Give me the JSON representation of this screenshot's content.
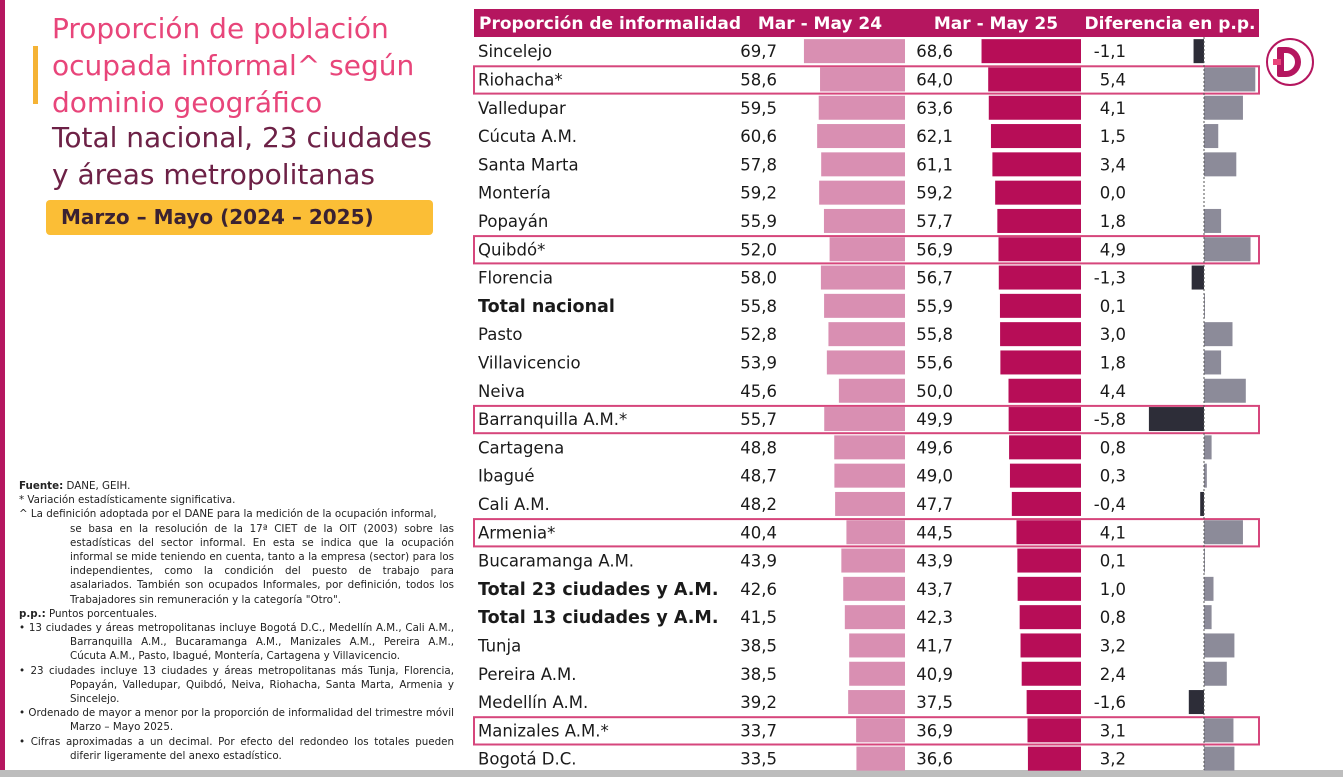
{
  "title": {
    "main": "Proporción de población ocupada informal^ según dominio geográfico",
    "sub": "Total nacional, 23 ciudades y áreas metropolitanas",
    "period": "Marzo – Mayo (2024 – 2025)"
  },
  "colors": {
    "accent": "#b5165f",
    "title_pink": "#e8457a",
    "title_dark": "#6d2146",
    "period_badge": "#fbbe36",
    "bar_prev": "#d98fb2",
    "bar_curr": "#b70d57",
    "diff_positive": "#8c8b99",
    "diff_negative": "#2d2d38",
    "highlight_border": "#d6467c"
  },
  "notes": {
    "source_label": "Fuente:",
    "source_value": " DANE, GEIH.",
    "significance": "* Variación estadísticamente significativa.",
    "definition_first": "^ La definición adoptada por el DANE para la medición de la ocupación informal,",
    "definition_rest": "se basa en la resolución de la 17ª CIET de la OIT (2003) sobre las estadísticas del sector informal. En esta se indica que la ocupación informal se mide teniendo en cuenta, tanto a la empresa (sector) para los independientes, como la condición del puesto de trabajo para asalariados. También son ocupados Informales, por definición, todos los Trabajadores sin remuneración y la categoría \"Otro\".",
    "pp_label": "p.p.:",
    "pp_value": " Puntos porcentuales.",
    "bullet_13": "• 13 ciudades y áreas metropolitanas incluye Bogotá D.C., Medellín A.M., Cali A.M., Barranquilla A.M., Bucaramanga A.M., Manizales A.M., Pereira A.M., Cúcuta A.M., Pasto, Ibagué, Montería, Cartagena y Villavicencio.",
    "bullet_23": "• 23 ciudades incluye 13 ciudades y áreas metropolitanas más Tunja, Florencia, Popayán, Valledupar, Quibdó, Neiva, Riohacha, Santa Marta, Armenia y Sincelejo.",
    "bullet_order": "• Ordenado de mayor a menor por la proporción de informalidad del trimestre móvil Marzo – Mayo 2025.",
    "bullet_round": "• Cifras aproximadas a un decimal. Por efecto del redondeo los totales pueden diferir ligeramente del anexo estadístico."
  },
  "chart_data": {
    "type": "bar",
    "headers": [
      "Proporción de informalidad",
      "Mar - May 24",
      "Mar - May 25",
      "Diferencia en p.p."
    ],
    "categories": [
      "Sincelejo",
      "Riohacha*",
      "Valledupar",
      "Cúcuta A.M.",
      "Santa Marta",
      "Montería",
      "Popayán",
      "Quibdó*",
      "Florencia",
      "Total nacional",
      "Pasto",
      "Villavicencio",
      "Neiva",
      "Barranquilla A.M.*",
      "Cartagena",
      "Ibagué",
      "Cali A.M.",
      "Armenia*",
      "Bucaramanga A.M.",
      "Total 23 ciudades y A.M.",
      "Total 13 ciudades y A.M.",
      "Tunja",
      "Pereira A.M.",
      "Medellín A.M.",
      "Manizales A.M.*",
      "Bogotá D.C."
    ],
    "series": [
      {
        "name": "Mar - May 24",
        "values": [
          69.7,
          58.6,
          59.5,
          60.6,
          57.8,
          59.2,
          55.9,
          52.0,
          58.0,
          55.8,
          52.8,
          53.9,
          45.6,
          55.7,
          48.8,
          48.7,
          48.2,
          40.4,
          43.9,
          42.6,
          41.5,
          38.5,
          38.5,
          39.2,
          33.7,
          33.5
        ]
      },
      {
        "name": "Mar - May 25",
        "values": [
          68.6,
          64.0,
          63.6,
          62.1,
          61.1,
          59.2,
          57.7,
          56.9,
          56.7,
          55.9,
          55.8,
          55.6,
          50.0,
          49.9,
          49.6,
          49.0,
          47.7,
          44.5,
          43.9,
          43.7,
          42.3,
          41.7,
          40.9,
          37.5,
          36.9,
          36.6
        ]
      },
      {
        "name": "Diferencia en p.p.",
        "values": [
          -1.1,
          5.4,
          4.1,
          1.5,
          3.4,
          0.0,
          1.8,
          4.9,
          -1.3,
          0.1,
          3.0,
          1.8,
          4.4,
          -5.8,
          0.8,
          0.3,
          -0.4,
          4.1,
          0.1,
          1.0,
          0.8,
          3.2,
          2.4,
          -1.6,
          3.1,
          3.2
        ]
      }
    ],
    "value_labels_prev": [
      "69,7",
      "58,6",
      "59,5",
      "60,6",
      "57,8",
      "59,2",
      "55,9",
      "52,0",
      "58,0",
      "55,8",
      "52,8",
      "53,9",
      "45,6",
      "55,7",
      "48,8",
      "48,7",
      "48,2",
      "40,4",
      "43,9",
      "42,6",
      "41,5",
      "38,5",
      "38,5",
      "39,2",
      "33,7",
      "33,5"
    ],
    "value_labels_curr": [
      "68,6",
      "64,0",
      "63,6",
      "62,1",
      "61,1",
      "59,2",
      "57,7",
      "56,9",
      "56,7",
      "55,9",
      "55,8",
      "55,6",
      "50,0",
      "49,9",
      "49,6",
      "49,0",
      "47,7",
      "44,5",
      "43,9",
      "43,7",
      "42,3",
      "41,7",
      "40,9",
      "37,5",
      "36,9",
      "36,6"
    ],
    "value_labels_diff": [
      "-1,1",
      "5,4",
      "4,1",
      "1,5",
      "3,4",
      "0,0",
      "1,8",
      "4,9",
      "-1,3",
      "0,1",
      "3,0",
      "1,8",
      "4,4",
      "-5,8",
      "0,8",
      "0,3",
      "-0,4",
      "4,1",
      "0,1",
      "1,0",
      "0,8",
      "3,2",
      "2,4",
      "-1,6",
      "3,1",
      "3,2"
    ],
    "bold_rows": [
      "Total nacional",
      "Total 23 ciudades y A.M.",
      "Total 13 ciudades y A.M."
    ],
    "highlighted_rows": [
      "Riohacha*",
      "Quibdó*",
      "Barranquilla A.M.*",
      "Armenia*",
      "Manizales A.M.*"
    ],
    "grid": false,
    "legend": "none"
  }
}
